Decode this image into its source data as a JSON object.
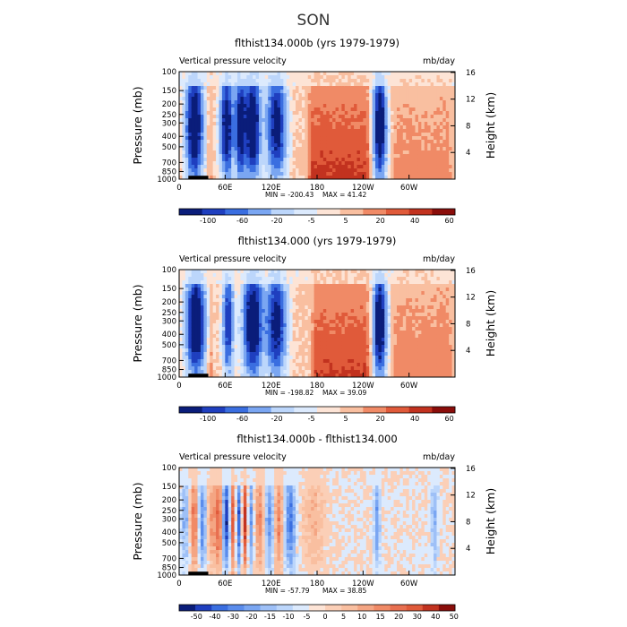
{
  "figure": {
    "title": "SON"
  },
  "colors": {
    "cb8": [
      "#0a1d7a",
      "#1f3fbf",
      "#3a6ee0",
      "#7aa6f2",
      "#bcd6fb",
      "#dceafd",
      "#fde4d6",
      "#f9bfa0",
      "#f08a66",
      "#e05a3a",
      "#c2321f",
      "#8a0d0a"
    ],
    "cb11": [
      "#0a1d7a",
      "#1f3fbf",
      "#3a6ee0",
      "#5a8cec",
      "#7aa6f2",
      "#9ec0f7",
      "#bcd6fb",
      "#dceafd",
      "#fde4d6",
      "#fbcfb7",
      "#f9bfa0",
      "#f4a583",
      "#f08a66",
      "#e86f50",
      "#e05a3a",
      "#c2321f",
      "#8a0d0a"
    ]
  },
  "chart_data": [
    {
      "type": "heatmap",
      "title": "flthist134.000b (yrs 1979-1979)",
      "left_label": "Vertical pressure velocity",
      "units": "mb/day",
      "ylabel": "Pressure (mb)",
      "y2label": "Height (km)",
      "yticks": [
        "100",
        "150",
        "200",
        "250",
        "300",
        "400",
        "500",
        "700",
        "850",
        "1000"
      ],
      "y2ticks": [
        "16",
        "12",
        "8",
        "4"
      ],
      "xticks": [
        "0",
        "60E",
        "120E",
        "180",
        "120W",
        "60W"
      ],
      "xlim": [
        0,
        360
      ],
      "ylim_mb": [
        1000,
        100
      ],
      "min_label": "MIN = -200.43",
      "max_label": "MAX =  41.42",
      "colorbar_labels": [
        "-100",
        "-60",
        "-20",
        "-5",
        "5",
        "20",
        "40",
        "60"
      ],
      "colorbar_scale": "cb8",
      "ascent_columns": [
        {
          "lon": 20,
          "width": 8,
          "strength": 1.0
        },
        {
          "lon": 62,
          "width": 6,
          "strength": 0.9
        },
        {
          "lon": 80,
          "width": 5,
          "strength": 0.85
        },
        {
          "lon": 96,
          "width": 7,
          "strength": 1.0
        },
        {
          "lon": 127,
          "width": 9,
          "strength": 0.85
        },
        {
          "lon": 262,
          "width": 6,
          "strength": 1.0
        }
      ],
      "descent_regions": [
        {
          "lon1": 165,
          "lon2": 252,
          "strength": 0.8
        },
        {
          "lon1": 36,
          "lon2": 44,
          "strength": 0.7
        },
        {
          "lon1": 275,
          "lon2": 360,
          "strength": 0.35
        }
      ],
      "topography": [
        {
          "lon1": 12,
          "lon2": 38,
          "pmb": 930
        }
      ]
    },
    {
      "type": "heatmap",
      "title": "flthist134.000 (yrs 1979-1979)",
      "left_label": "Vertical pressure velocity",
      "units": "mb/day",
      "ylabel": "Pressure (mb)",
      "y2label": "Height (km)",
      "yticks": [
        "100",
        "150",
        "200",
        "250",
        "300",
        "400",
        "500",
        "700",
        "850",
        "1000"
      ],
      "y2ticks": [
        "16",
        "12",
        "8",
        "4"
      ],
      "xticks": [
        "0",
        "60E",
        "120E",
        "180",
        "120W",
        "60W"
      ],
      "xlim": [
        0,
        360
      ],
      "ylim_mb": [
        1000,
        100
      ],
      "min_label": "MIN = -198.82",
      "max_label": "MAX =  39.09",
      "colorbar_labels": [
        "-100",
        "-60",
        "-20",
        "-5",
        "5",
        "20",
        "40",
        "60"
      ],
      "colorbar_scale": "cb8",
      "ascent_columns": [
        {
          "lon": 22,
          "width": 9,
          "strength": 1.0
        },
        {
          "lon": 64,
          "width": 5,
          "strength": 0.7
        },
        {
          "lon": 96,
          "width": 9,
          "strength": 1.0
        },
        {
          "lon": 127,
          "width": 9,
          "strength": 0.85
        },
        {
          "lon": 262,
          "width": 6,
          "strength": 1.0
        }
      ],
      "descent_regions": [
        {
          "lon1": 170,
          "lon2": 252,
          "strength": 0.75
        },
        {
          "lon1": 36,
          "lon2": 46,
          "strength": 0.7
        },
        {
          "lon1": 275,
          "lon2": 360,
          "strength": 0.4
        }
      ],
      "topography": [
        {
          "lon1": 12,
          "lon2": 38,
          "pmb": 930
        }
      ]
    },
    {
      "type": "heatmap",
      "title": "flthist134.000b - flthist134.000",
      "left_label": "Vertical pressure velocity",
      "units": "mb/day",
      "ylabel": "Pressure (mb)",
      "y2label": "Height (km)",
      "yticks": [
        "100",
        "150",
        "200",
        "250",
        "300",
        "400",
        "500",
        "700",
        "850",
        "1000"
      ],
      "y2ticks": [
        "16",
        "12",
        "8",
        "4"
      ],
      "xticks": [
        "0",
        "60E",
        "120E",
        "180",
        "120W",
        "60W"
      ],
      "xlim": [
        0,
        360
      ],
      "ylim_mb": [
        1000,
        100
      ],
      "min_label": "MIN = -57.79",
      "max_label": "MAX =  38.85",
      "colorbar_labels": [
        "-50",
        "-40",
        "-30",
        "-20",
        "-15",
        "-10",
        "-5",
        "0",
        "5",
        "10",
        "15",
        "20",
        "30",
        "40",
        "50"
      ],
      "colorbar_scale": "cb11",
      "diff_columns": [
        {
          "lon": 8,
          "width": 4,
          "sign": -1,
          "strength": 0.4
        },
        {
          "lon": 20,
          "width": 4,
          "sign": 1,
          "strength": 0.6
        },
        {
          "lon": 30,
          "width": 4,
          "sign": -1,
          "strength": 0.6
        },
        {
          "lon": 43,
          "width": 4,
          "sign": 1,
          "strength": 0.4
        },
        {
          "lon": 52,
          "width": 3,
          "sign": 1,
          "strength": 0.7
        },
        {
          "lon": 62,
          "width": 4,
          "sign": -1,
          "strength": 0.9
        },
        {
          "lon": 70,
          "width": 3,
          "sign": 1,
          "strength": 0.8
        },
        {
          "lon": 78,
          "width": 3,
          "sign": -1,
          "strength": 0.8
        },
        {
          "lon": 86,
          "width": 3,
          "sign": 1,
          "strength": 0.9
        },
        {
          "lon": 93,
          "width": 3,
          "sign": -1,
          "strength": 0.6
        },
        {
          "lon": 105,
          "width": 4,
          "sign": 1,
          "strength": 0.5
        },
        {
          "lon": 118,
          "width": 4,
          "sign": -1,
          "strength": 0.6
        },
        {
          "lon": 130,
          "width": 4,
          "sign": 1,
          "strength": 0.5
        },
        {
          "lon": 145,
          "width": 5,
          "sign": -1,
          "strength": 0.7
        },
        {
          "lon": 175,
          "width": 10,
          "sign": 1,
          "strength": 0.25
        },
        {
          "lon": 258,
          "width": 3,
          "sign": -1,
          "strength": 0.5
        },
        {
          "lon": 333,
          "width": 3,
          "sign": -1,
          "strength": 0.4
        }
      ],
      "topography": [
        {
          "lon1": 12,
          "lon2": 38,
          "pmb": 930
        }
      ]
    }
  ]
}
